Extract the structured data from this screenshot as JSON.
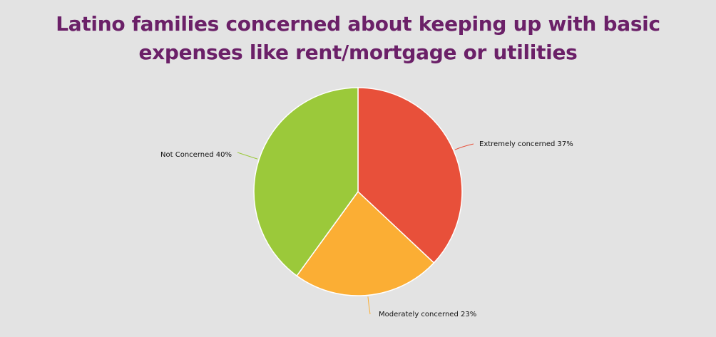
{
  "chart_data": {
    "type": "pie",
    "title": "Latino families concerned about keeping up with basic expenses like rent/mortgage or utilities",
    "values": [
      37,
      23,
      40
    ],
    "value_labels": [
      "Extremely concerned 37%",
      "Moderately concerned 23%",
      "Not Concerned 40%"
    ],
    "colors": [
      "#e8503a",
      "#fbae34",
      "#9bc93a"
    ]
  }
}
